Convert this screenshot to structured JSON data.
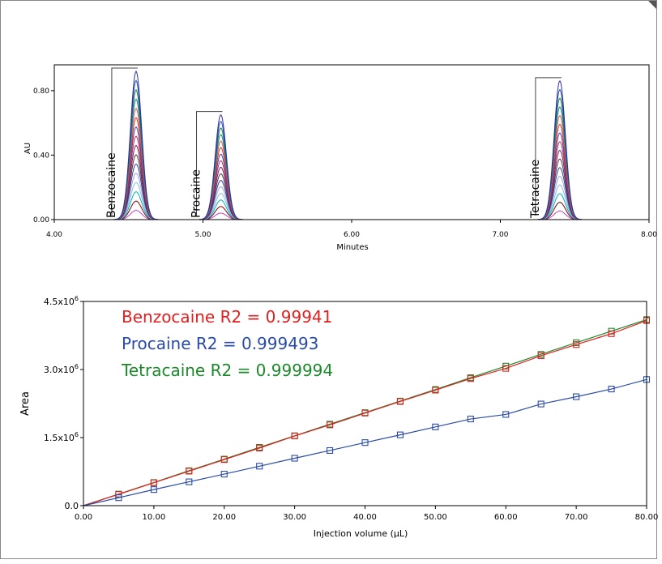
{
  "chart_data": [
    {
      "type": "line",
      "subtype": "chromatogram-overlay",
      "xlabel": "Minutes",
      "ylabel": "AU",
      "xlim": [
        4.0,
        8.0
      ],
      "ylim": [
        0.0,
        0.96
      ],
      "xticks": [
        "4.00",
        "5.00",
        "6.00",
        "7.00",
        "8.00"
      ],
      "yticks": [
        "0.00",
        "0.40",
        "0.80"
      ],
      "ytick_values": [
        0.0,
        0.4,
        0.8
      ],
      "grid": false,
      "peaks": [
        {
          "label": "Benzocaine",
          "retention_time": 4.55,
          "max_height": 0.92
        },
        {
          "label": "Procaine",
          "retention_time": 5.12,
          "max_height": 0.65
        },
        {
          "label": "Tetracaine",
          "retention_time": 7.4,
          "max_height": 0.86
        }
      ],
      "overlay_fractions": [
        0.0625,
        0.125,
        0.1875,
        0.25,
        0.3125,
        0.375,
        0.4375,
        0.5,
        0.5625,
        0.625,
        0.6875,
        0.75,
        0.8125,
        0.875,
        0.9375,
        1.0
      ],
      "overlay_colors": [
        "#c040c0",
        "#800000",
        "#00b0b0",
        "#80c0e0",
        "#a0a0e0",
        "#3040a0",
        "#404040",
        "#802060",
        "#c03050",
        "#4040c0",
        "#e03030",
        "#e06040",
        "#2080a0",
        "#208040",
        "#2050b0",
        "#3030a0"
      ]
    },
    {
      "type": "scatter",
      "subtype": "calibration-with-fit",
      "xlabel": "Injection volume (µL)",
      "ylabel": "Area",
      "xlim": [
        0,
        80
      ],
      "ylim": [
        0,
        4500000
      ],
      "xticks": [
        "0.00",
        "10.00",
        "20.00",
        "30.00",
        "40.00",
        "50.00",
        "60.00",
        "70.00",
        "80.00"
      ],
      "yticks": [
        "0.0",
        "1.5x10",
        "3.0x10",
        "4.5x10"
      ],
      "ytick_exponents": [
        "",
        "6",
        "6",
        "6"
      ],
      "ytick_values": [
        0,
        1500000,
        3000000,
        4500000
      ],
      "grid": false,
      "x": [
        5,
        10,
        15,
        20,
        25,
        30,
        35,
        40,
        45,
        50,
        55,
        60,
        65,
        70,
        75,
        80
      ],
      "series": [
        {
          "name": "Tetracaine",
          "color": "#1a8a2a",
          "values": [
            255000,
            510000,
            770000,
            1025000,
            1285000,
            1540000,
            1795000,
            2050000,
            2305000,
            2560000,
            2820000,
            3075000,
            3335000,
            3590000,
            3845000,
            4100000
          ]
        },
        {
          "name": "Benzocaine",
          "color": "#e02020",
          "values": [
            250000,
            505000,
            760000,
            1015000,
            1270000,
            1535000,
            1780000,
            2040000,
            2295000,
            2545000,
            2800000,
            3025000,
            3305000,
            3550000,
            3790000,
            4080000
          ]
        },
        {
          "name": "Procaine",
          "color": "#2a4aa8",
          "values": [
            175000,
            355000,
            525000,
            695000,
            870000,
            1045000,
            1215000,
            1390000,
            1560000,
            1735000,
            1910000,
            2010000,
            2240000,
            2400000,
            2570000,
            2780000
          ]
        }
      ],
      "annotations": [
        {
          "text": "Benzocaine R2 = 0.99941",
          "color": "#e02020"
        },
        {
          "text": "Procaine R2 = 0.999493",
          "color": "#2a4aa8"
        },
        {
          "text": "Tetracaine R2 = 0.999994",
          "color": "#1a8a2a"
        }
      ]
    }
  ]
}
